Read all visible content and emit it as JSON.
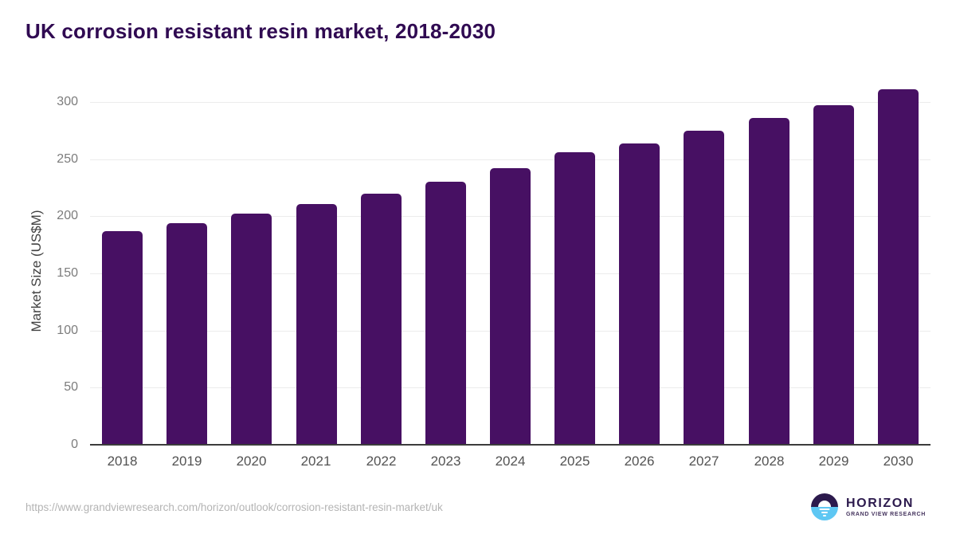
{
  "header": {
    "title": "UK corrosion resistant resin market, 2018-2030",
    "title_color": "#300a52"
  },
  "chart_data": {
    "type": "bar",
    "title": "UK corrosion resistant resin market, 2018-2030",
    "categories": [
      "2018",
      "2019",
      "2020",
      "2021",
      "2022",
      "2023",
      "2024",
      "2025",
      "2026",
      "2027",
      "2028",
      "2029",
      "2030"
    ],
    "values": [
      187,
      194,
      202,
      211,
      220,
      230,
      242,
      256,
      264,
      275,
      286,
      297,
      311
    ],
    "xlabel": "",
    "ylabel": "Market Size (US$M)",
    "ylim": [
      0,
      320
    ],
    "yticks": [
      0,
      50,
      100,
      150,
      200,
      250,
      300
    ],
    "grid": true,
    "legend": false,
    "bar_color": "#471063",
    "gridline_color": "#ececec",
    "axis_line_color": "#3c3c3c",
    "tick_label_color": "#7c7c7c"
  },
  "footer": {
    "source_url": "https://www.grandviewresearch.com/horizon/outlook/corrosion-resistant-resin-market/uk",
    "logo": {
      "brand": "HORIZON",
      "sub_brand": "GRAND VIEW RESEARCH",
      "icon": "sun-over-water-icon",
      "purple": "#2c1a4d",
      "blue": "#5ec7f3",
      "text_color": "#2c1a4d",
      "sub_text_color": "#45345e"
    }
  }
}
